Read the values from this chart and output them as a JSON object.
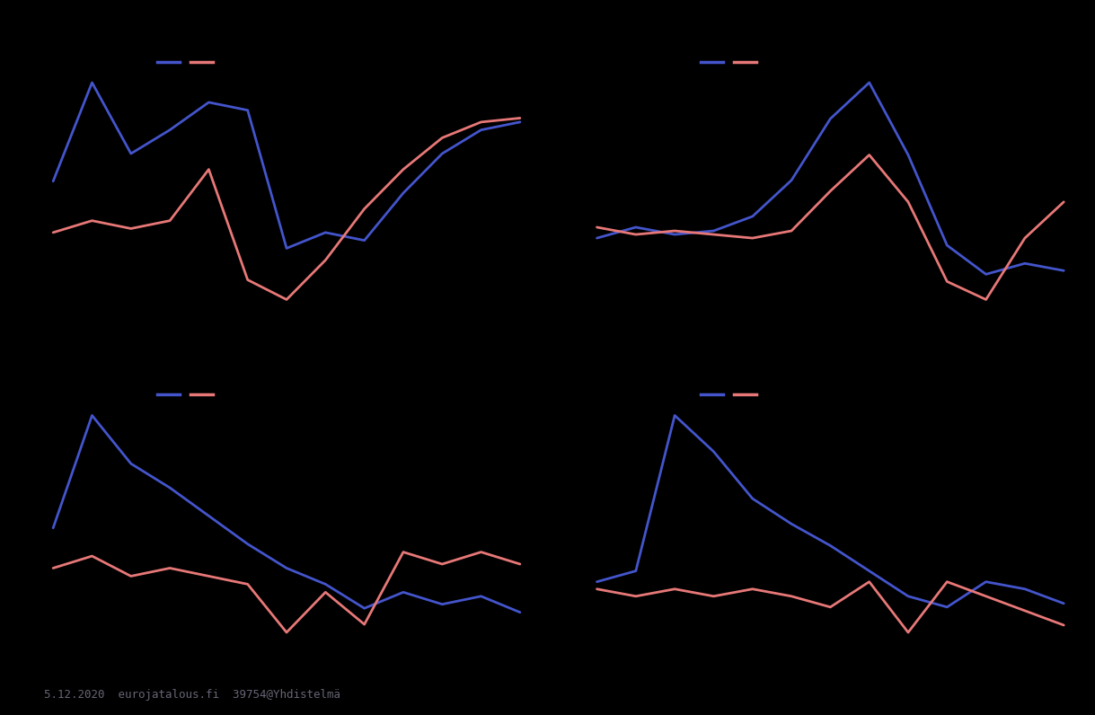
{
  "background_color": "#000000",
  "line_color_blue": "#4455cc",
  "line_color_pink": "#e87878",
  "linewidth": 2.0,
  "legend_linewidth": 2.5,
  "watermark": "5.12.2020  eurojatalous.fi  39754@Yhdistelmä",
  "watermark_color": "#666677",
  "watermark_fontsize": 9,
  "subplots": [
    {
      "blue": [
        3.5,
        6.0,
        4.2,
        4.8,
        5.5,
        5.3,
        1.8,
        2.2,
        2.0,
        3.2,
        4.2,
        4.8,
        5.0
      ],
      "pink": [
        2.2,
        2.5,
        2.3,
        2.5,
        3.8,
        1.0,
        0.5,
        1.5,
        2.8,
        3.8,
        4.6,
        5.0,
        5.1
      ]
    },
    {
      "blue": [
        4.2,
        4.5,
        4.3,
        4.4,
        4.8,
        5.8,
        7.5,
        8.5,
        6.5,
        4.0,
        3.2,
        3.5,
        3.3
      ],
      "pink": [
        4.5,
        4.3,
        4.4,
        4.3,
        4.2,
        4.4,
        5.5,
        6.5,
        5.2,
        3.0,
        2.5,
        4.2,
        5.2
      ]
    },
    {
      "blue": [
        4.2,
        7.0,
        5.8,
        5.2,
        4.5,
        3.8,
        3.2,
        2.8,
        2.2,
        2.6,
        2.3,
        2.5,
        2.1
      ],
      "pink": [
        3.2,
        3.5,
        3.0,
        3.2,
        3.0,
        2.8,
        1.6,
        2.6,
        1.8,
        3.6,
        3.3,
        3.6,
        3.3
      ]
    },
    {
      "blue": [
        3.2,
        3.5,
        7.8,
        6.8,
        5.5,
        4.8,
        4.2,
        3.5,
        2.8,
        2.5,
        3.2,
        3.0,
        2.6
      ],
      "pink": [
        3.0,
        2.8,
        3.0,
        2.8,
        3.0,
        2.8,
        2.5,
        3.2,
        1.8,
        3.2,
        2.8,
        2.4,
        2.0
      ]
    }
  ]
}
